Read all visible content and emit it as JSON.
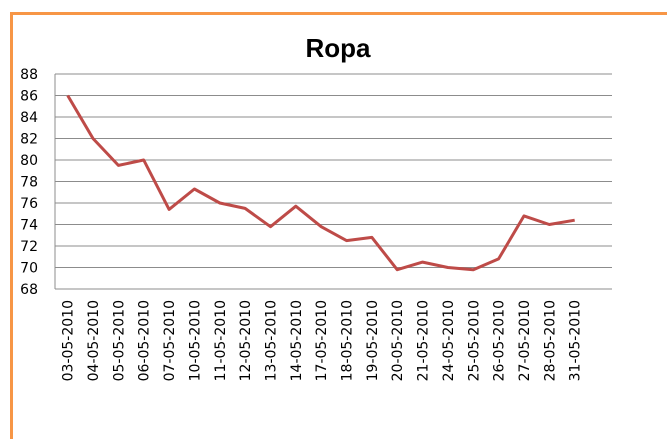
{
  "chart_data": {
    "type": "line",
    "title": "Ropa",
    "categories": [
      "03-05-2010",
      "04-05-2010",
      "05-05-2010",
      "06-05-2010",
      "07-05-2010",
      "10-05-2010",
      "11-05-2010",
      "12-05-2010",
      "13-05-2010",
      "14-05-2010",
      "17-05-2010",
      "18-05-2010",
      "19-05-2010",
      "20-05-2010",
      "21-05-2010",
      "24-05-2010",
      "25-05-2010",
      "26-05-2010",
      "27-05-2010",
      "28-05-2010",
      "31-05-2010"
    ],
    "values": [
      86,
      82,
      79.5,
      80,
      75.4,
      77.3,
      76,
      75.5,
      73.8,
      75.7,
      73.8,
      72.5,
      72.8,
      69.8,
      70.5,
      70,
      69.8,
      70.8,
      74.8,
      74,
      74.4
    ],
    "color": "#be4b48",
    "ylim": [
      68,
      88
    ],
    "yticks": [
      68,
      70,
      72,
      74,
      76,
      78,
      80,
      82,
      84,
      86,
      88
    ],
    "grid": true
  }
}
